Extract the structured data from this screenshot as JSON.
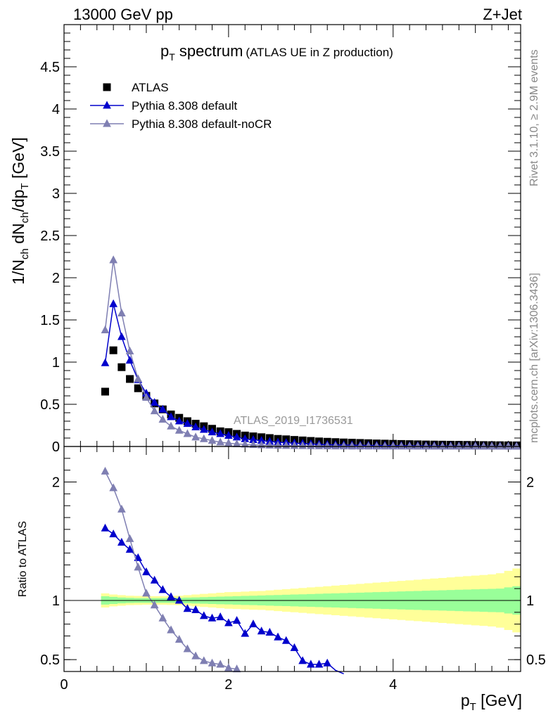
{
  "header": {
    "left": "13000 GeV pp",
    "right": "Z+Jet"
  },
  "title": {
    "main": "p",
    "main_sub": "T",
    "main_rest": " spectrum",
    "note": "(ATLAS UE in Z production)"
  },
  "side_labels": {
    "rivet": "Rivet 3.1.10, ≥ 2.9M events",
    "mcplots": "mcplots.cern.ch [arXiv:1306.3436]"
  },
  "watermark": "ATLAS_2019_I1736531",
  "axes": {
    "ylabel_parts": [
      "1/N",
      "ch",
      " dN",
      "ch",
      "/dp",
      "T",
      " [GeV]"
    ],
    "ratio_ylabel": "Ratio to ATLAS",
    "xlabel_main": "p",
    "xlabel_sub": "T",
    "xlabel_unit": " [GeV]"
  },
  "chart_data": {
    "type": "scatter",
    "x_range": [
      0,
      5.55
    ],
    "y_range": [
      0,
      5
    ],
    "y_ticks": [
      "0",
      "0.5",
      "1",
      "1.5",
      "2",
      "2.5",
      "3",
      "3.5",
      "4",
      "4.5"
    ],
    "x_ticks": [
      "0",
      "2",
      "4"
    ],
    "ratio_range": [
      0.4,
      2.3
    ],
    "ratio_ticks": [
      "0.5",
      "1",
      "2"
    ],
    "legend_position": "top-left",
    "series": [
      {
        "name": "ATLAS",
        "marker": "square",
        "color": "#000000",
        "x": [
          0.5,
          0.6,
          0.7,
          0.8,
          0.9,
          1.0,
          1.1,
          1.2,
          1.3,
          1.4,
          1.5,
          1.6,
          1.7,
          1.8,
          1.9,
          2.0,
          2.1,
          2.2,
          2.3,
          2.4,
          2.5,
          2.6,
          2.7,
          2.8,
          2.9,
          3.0,
          3.1,
          3.2,
          3.3,
          3.4,
          3.5,
          3.6,
          3.7,
          3.8,
          3.9,
          4.0,
          4.1,
          4.2,
          4.3,
          4.4,
          4.5,
          4.6,
          4.7,
          4.8,
          4.9,
          5.0,
          5.1,
          5.2,
          5.3,
          5.4,
          5.5
        ],
        "values": [
          0.65,
          1.14,
          0.94,
          0.8,
          0.69,
          0.6,
          0.51,
          0.44,
          0.38,
          0.34,
          0.3,
          0.27,
          0.24,
          0.21,
          0.18,
          0.17,
          0.15,
          0.13,
          0.12,
          0.11,
          0.1,
          0.09,
          0.085,
          0.078,
          0.072,
          0.066,
          0.06,
          0.056,
          0.052,
          0.048,
          0.045,
          0.042,
          0.039,
          0.036,
          0.034,
          0.032,
          0.03,
          0.028,
          0.026,
          0.024,
          0.023,
          0.022,
          0.021,
          0.02,
          0.019,
          0.018,
          0.017,
          0.016,
          0.015,
          0.014,
          0.013
        ]
      },
      {
        "name": "Pythia 8.308 default",
        "marker": "triangle",
        "color": "#0000cc",
        "x": [
          0.5,
          0.6,
          0.7,
          0.8,
          0.9,
          1.0,
          1.1,
          1.2,
          1.3,
          1.4,
          1.5,
          1.6,
          1.7,
          1.8,
          1.9,
          2.0,
          2.1,
          2.2,
          2.3,
          2.4,
          2.5,
          2.6,
          2.7,
          2.8,
          2.9,
          3.0,
          3.1,
          3.2,
          3.3,
          3.4,
          3.5,
          3.6,
          3.7,
          3.8,
          3.9,
          4.0,
          4.1,
          4.2,
          4.3,
          4.4,
          4.5,
          4.6,
          4.7,
          4.8,
          4.9,
          5.0,
          5.1,
          5.2,
          5.3,
          5.4,
          5.5
        ],
        "values": [
          0.99,
          1.69,
          1.3,
          1.02,
          0.79,
          0.63,
          0.52,
          0.44,
          0.35,
          0.3,
          0.27,
          0.23,
          0.2,
          0.17,
          0.15,
          0.13,
          0.11,
          0.09,
          0.08,
          0.07,
          0.06,
          0.05,
          0.045,
          0.04,
          0.035,
          0.03,
          0.025,
          0.022,
          0.02,
          0.018,
          0.016,
          0.014,
          0.013,
          0.012,
          0.011,
          0.01,
          0.009,
          0.008,
          0.008,
          0.007,
          0.007,
          0.006,
          0.006,
          0.005,
          0.005,
          0.005,
          0.004,
          0.004,
          0.004,
          0.003,
          0.003
        ],
        "ratio": [
          1.61,
          1.56,
          1.49,
          1.43,
          1.36,
          1.24,
          1.17,
          1.09,
          1.03,
          1.0,
          0.93,
          0.92,
          0.87,
          0.85,
          0.86,
          0.81,
          0.83,
          0.72,
          0.8,
          0.74,
          0.73,
          0.69,
          0.66,
          0.6,
          0.49,
          0.46,
          0.46,
          0.47,
          0.41,
          0.38
        ]
      },
      {
        "name": "Pythia 8.308 default-noCR",
        "marker": "triangle",
        "color": "#7f7fb2",
        "x": [
          0.5,
          0.6,
          0.7,
          0.8,
          0.9,
          1.0,
          1.1,
          1.2,
          1.3,
          1.4,
          1.5,
          1.6,
          1.7,
          1.8,
          1.9,
          2.0,
          2.1,
          2.2,
          2.3,
          2.4,
          2.5,
          2.6,
          2.7,
          2.8,
          2.9,
          3.0,
          3.1,
          3.2,
          3.3,
          3.4,
          3.5,
          3.6,
          3.7,
          3.8,
          3.9,
          4.0,
          4.1,
          4.2,
          4.3,
          4.4,
          4.5,
          4.6,
          4.7,
          4.8,
          4.9,
          5.0,
          5.1,
          5.2,
          5.3,
          5.4,
          5.5
        ],
        "values": [
          1.38,
          2.21,
          1.58,
          1.13,
          0.8,
          0.58,
          0.42,
          0.32,
          0.24,
          0.19,
          0.15,
          0.11,
          0.09,
          0.07,
          0.05,
          0.04,
          0.03,
          0.025,
          0.02,
          0.017,
          0.014,
          0.012,
          0.01,
          0.009,
          0.008,
          0.007,
          0.006,
          0.005,
          0.004,
          0.004,
          0.003,
          0.003,
          0.003,
          0.002,
          0.002,
          0.002,
          0.002,
          0.002,
          0.001,
          0.001,
          0.001,
          0.001,
          0.001,
          0.001,
          0.001,
          0.001,
          0.001,
          0.001,
          0.001,
          0.001,
          0.001
        ],
        "ratio": [
          2.09,
          1.95,
          1.77,
          1.52,
          1.28,
          1.06,
          0.96,
          0.85,
          0.75,
          0.67,
          0.59,
          0.53,
          0.49,
          0.47,
          0.46,
          0.43,
          0.42
        ]
      }
    ],
    "ratio_bands": {
      "x": [
        0.5,
        0.6,
        0.7,
        0.8,
        0.9,
        1.0,
        1.1,
        1.2,
        1.3,
        1.4,
        1.5,
        1.6,
        1.7,
        1.8,
        1.9,
        2.0,
        2.1,
        2.2,
        2.3,
        2.4,
        2.5,
        2.6,
        2.7,
        2.8,
        2.9,
        3.0,
        3.1,
        3.2,
        3.3,
        3.4,
        3.5,
        3.6,
        3.7,
        3.8,
        3.9,
        4.0,
        4.1,
        4.2,
        4.3,
        4.4,
        4.5,
        4.6,
        4.7,
        4.8,
        4.9,
        5.0,
        5.1,
        5.2,
        5.3,
        5.4,
        5.5
      ],
      "inner": [
        0.035,
        0.03,
        0.025,
        0.022,
        0.02,
        0.02,
        0.02,
        0.02,
        0.02,
        0.022,
        0.024,
        0.026,
        0.028,
        0.03,
        0.032,
        0.034,
        0.036,
        0.038,
        0.04,
        0.042,
        0.044,
        0.046,
        0.048,
        0.05,
        0.052,
        0.054,
        0.056,
        0.058,
        0.06,
        0.062,
        0.064,
        0.066,
        0.068,
        0.07,
        0.072,
        0.074,
        0.076,
        0.078,
        0.08,
        0.082,
        0.084,
        0.086,
        0.088,
        0.09,
        0.092,
        0.094,
        0.096,
        0.098,
        0.1,
        0.11,
        0.12
      ],
      "outer": [
        0.06,
        0.05,
        0.045,
        0.04,
        0.038,
        0.036,
        0.036,
        0.036,
        0.038,
        0.04,
        0.045,
        0.05,
        0.055,
        0.06,
        0.065,
        0.07,
        0.072,
        0.075,
        0.078,
        0.08,
        0.085,
        0.09,
        0.095,
        0.1,
        0.105,
        0.11,
        0.115,
        0.12,
        0.125,
        0.13,
        0.135,
        0.14,
        0.145,
        0.15,
        0.155,
        0.16,
        0.165,
        0.17,
        0.175,
        0.18,
        0.185,
        0.19,
        0.195,
        0.2,
        0.205,
        0.21,
        0.215,
        0.22,
        0.23,
        0.25,
        0.27
      ],
      "inner_color": "#99ff99",
      "outer_color": "#ffff99"
    }
  }
}
